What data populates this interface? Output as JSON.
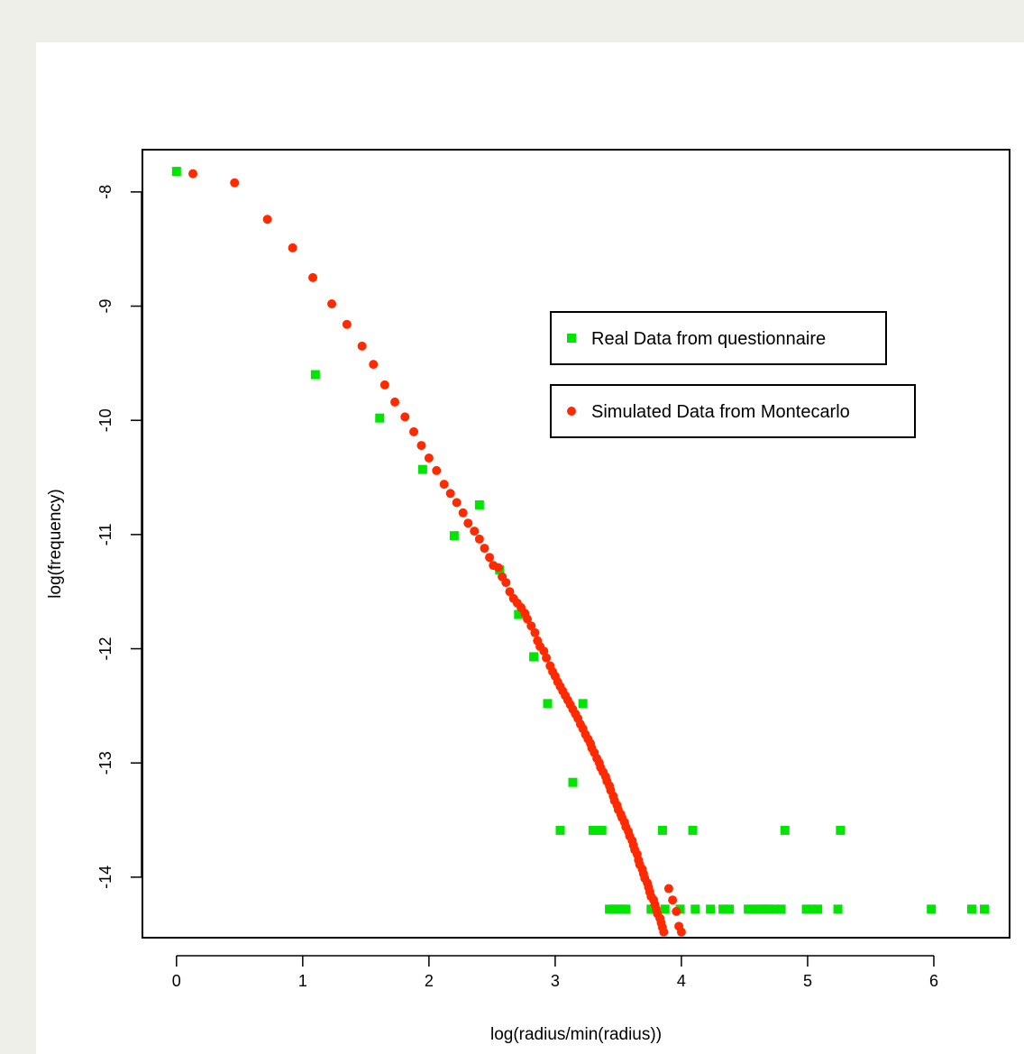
{
  "chart_data": {
    "type": "scatter",
    "title": "",
    "xlabel": "log(radius/min(radius))",
    "ylabel": "log(frequency)",
    "xlim": [
      -0.27,
      6.6
    ],
    "ylim": [
      -14.53,
      -7.63
    ],
    "xticks": [
      0,
      1,
      2,
      3,
      4,
      5,
      6
    ],
    "yticks": [
      -8,
      -9,
      -10,
      -11,
      -12,
      -13,
      -14
    ],
    "grid": false,
    "legend": {
      "placement": "center-right",
      "entries": [
        {
          "label": "Real Data from questionnaire",
          "color": "#00e600",
          "marker": "square"
        },
        {
          "label": "Simulated Data from Montecarlo",
          "color": "#ff2a00",
          "marker": "circle"
        }
      ]
    },
    "series": [
      {
        "name": "Real Data from questionnaire",
        "color": "#00e600",
        "marker": "square",
        "points": [
          [
            0.0,
            -7.82
          ],
          [
            1.1,
            -9.6
          ],
          [
            1.61,
            -9.98
          ],
          [
            1.95,
            -10.43
          ],
          [
            2.2,
            -11.01
          ],
          [
            2.4,
            -10.74
          ],
          [
            2.56,
            -11.31
          ],
          [
            2.71,
            -11.7
          ],
          [
            2.83,
            -12.07
          ],
          [
            2.94,
            -12.48
          ],
          [
            3.04,
            -13.59
          ],
          [
            3.14,
            -13.17
          ],
          [
            3.22,
            -12.48
          ],
          [
            3.3,
            -13.59
          ],
          [
            3.33,
            -13.59
          ],
          [
            3.37,
            -13.59
          ],
          [
            3.43,
            -14.28
          ],
          [
            3.47,
            -14.28
          ],
          [
            3.5,
            -14.28
          ],
          [
            3.53,
            -14.28
          ],
          [
            3.56,
            -14.28
          ],
          [
            3.76,
            -14.28
          ],
          [
            3.85,
            -13.59
          ],
          [
            3.87,
            -14.28
          ],
          [
            3.99,
            -14.28
          ],
          [
            4.09,
            -13.59
          ],
          [
            4.11,
            -14.28
          ],
          [
            4.23,
            -14.28
          ],
          [
            4.33,
            -14.28
          ],
          [
            4.38,
            -14.28
          ],
          [
            4.53,
            -14.28
          ],
          [
            4.57,
            -14.28
          ],
          [
            4.61,
            -14.28
          ],
          [
            4.64,
            -14.28
          ],
          [
            4.67,
            -14.28
          ],
          [
            4.7,
            -14.28
          ],
          [
            4.74,
            -14.28
          ],
          [
            4.79,
            -14.28
          ],
          [
            4.82,
            -13.59
          ],
          [
            4.99,
            -14.28
          ],
          [
            5.03,
            -14.28
          ],
          [
            5.08,
            -14.28
          ],
          [
            5.24,
            -14.28
          ],
          [
            5.26,
            -13.59
          ],
          [
            5.98,
            -14.28
          ],
          [
            6.3,
            -14.28
          ],
          [
            6.4,
            -14.28
          ]
        ]
      },
      {
        "name": "Simulated Data from Montecarlo",
        "color": "#ff2a00",
        "marker": "circle",
        "points": [
          [
            0.13,
            -7.84
          ],
          [
            0.46,
            -7.92
          ],
          [
            0.72,
            -8.24
          ],
          [
            0.92,
            -8.49
          ],
          [
            1.08,
            -8.75
          ],
          [
            1.23,
            -8.98
          ],
          [
            1.35,
            -9.16
          ],
          [
            1.47,
            -9.35
          ],
          [
            1.56,
            -9.51
          ],
          [
            1.65,
            -9.69
          ],
          [
            1.73,
            -9.84
          ],
          [
            1.81,
            -9.97
          ],
          [
            1.88,
            -10.1
          ],
          [
            1.94,
            -10.22
          ],
          [
            2.0,
            -10.33
          ],
          [
            2.06,
            -10.44
          ],
          [
            2.12,
            -10.56
          ],
          [
            2.17,
            -10.64
          ],
          [
            2.22,
            -10.72
          ],
          [
            2.27,
            -10.81
          ],
          [
            2.31,
            -10.9
          ],
          [
            2.36,
            -10.97
          ],
          [
            2.4,
            -11.04
          ],
          [
            2.44,
            -11.12
          ],
          [
            2.48,
            -11.2
          ],
          [
            2.51,
            -11.27
          ],
          [
            2.55,
            -11.29
          ],
          [
            2.58,
            -11.37
          ],
          [
            2.61,
            -11.42
          ],
          [
            2.64,
            -11.5
          ],
          [
            2.67,
            -11.56
          ],
          [
            2.7,
            -11.6
          ],
          [
            2.73,
            -11.64
          ],
          [
            2.76,
            -11.69
          ],
          [
            2.78,
            -11.74
          ],
          [
            2.81,
            -11.8
          ],
          [
            2.84,
            -11.86
          ],
          [
            2.86,
            -11.93
          ],
          [
            2.88,
            -11.98
          ],
          [
            2.91,
            -12.02
          ],
          [
            2.93,
            -12.08
          ],
          [
            2.96,
            -12.15
          ],
          [
            2.98,
            -12.2
          ],
          [
            3.0,
            -12.24
          ],
          [
            3.02,
            -12.29
          ],
          [
            3.04,
            -12.33
          ],
          [
            3.06,
            -12.37
          ],
          [
            3.08,
            -12.41
          ],
          [
            3.1,
            -12.45
          ],
          [
            3.12,
            -12.49
          ],
          [
            3.14,
            -12.53
          ],
          [
            3.16,
            -12.57
          ],
          [
            3.18,
            -12.61
          ],
          [
            3.2,
            -12.66
          ],
          [
            3.22,
            -12.7
          ],
          [
            3.24,
            -12.75
          ],
          [
            3.26,
            -12.79
          ],
          [
            3.28,
            -12.83
          ],
          [
            3.29,
            -12.87
          ],
          [
            3.31,
            -12.91
          ],
          [
            3.33,
            -12.96
          ],
          [
            3.35,
            -13.0
          ],
          [
            3.36,
            -13.04
          ],
          [
            3.38,
            -13.08
          ],
          [
            3.4,
            -13.12
          ],
          [
            3.41,
            -13.16
          ],
          [
            3.43,
            -13.2
          ],
          [
            3.44,
            -13.24
          ],
          [
            3.46,
            -13.29
          ],
          [
            3.47,
            -13.33
          ],
          [
            3.49,
            -13.37
          ],
          [
            3.5,
            -13.41
          ],
          [
            3.52,
            -13.45
          ],
          [
            3.53,
            -13.48
          ],
          [
            3.55,
            -13.52
          ],
          [
            3.56,
            -13.56
          ],
          [
            3.58,
            -13.6
          ],
          [
            3.59,
            -13.64
          ],
          [
            3.61,
            -13.68
          ],
          [
            3.62,
            -13.72
          ],
          [
            3.63,
            -13.76
          ],
          [
            3.65,
            -13.8
          ],
          [
            3.66,
            -13.85
          ],
          [
            3.67,
            -13.89
          ],
          [
            3.69,
            -13.93
          ],
          [
            3.7,
            -13.97
          ],
          [
            3.71,
            -14.01
          ],
          [
            3.73,
            -14.05
          ],
          [
            3.74,
            -14.09
          ],
          [
            3.75,
            -14.13
          ],
          [
            3.76,
            -14.17
          ],
          [
            3.78,
            -14.2
          ],
          [
            3.79,
            -14.24
          ],
          [
            3.8,
            -14.28
          ],
          [
            3.81,
            -14.32
          ],
          [
            3.83,
            -14.36
          ],
          [
            3.84,
            -14.4
          ],
          [
            3.85,
            -14.44
          ],
          [
            3.86,
            -14.48
          ],
          [
            3.9,
            -14.1
          ],
          [
            3.93,
            -14.2
          ],
          [
            3.96,
            -14.3
          ],
          [
            3.98,
            -14.43
          ],
          [
            4.0,
            -14.48
          ]
        ]
      }
    ]
  }
}
